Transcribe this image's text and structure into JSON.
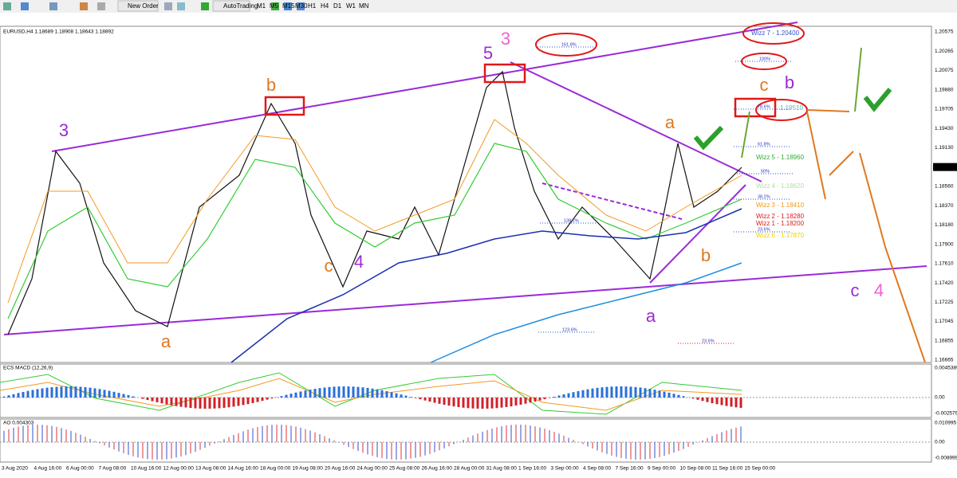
{
  "toolbar": {
    "new_order": "New Order",
    "autotrading": "AutoTrading",
    "timeframes": [
      "M1",
      "M5",
      "M15",
      "M30",
      "H1",
      "H4",
      "D1",
      "W1",
      "MN"
    ]
  },
  "chart": {
    "header": "EURUSD,H4  1.18689 1.18908 1.18643 1.18892",
    "price_axis": [
      "1.20575",
      "1.20265",
      "1.20075",
      "1.19880",
      "1.19705",
      "1.19430",
      "1.19130",
      "1.18892",
      "1.18560",
      "1.18370",
      "1.18180",
      "1.17900",
      "1.17610",
      "1.17420",
      "1.17225",
      "1.17045",
      "1.16855",
      "1.16665"
    ],
    "time_axis": [
      "3 Aug 2020",
      "4 Aug 16:00",
      "6 Aug 00:00",
      "7 Aug 08:00",
      "10 Aug 16:00",
      "12 Aug 00:00",
      "13 Aug 08:00",
      "14 Aug 16:00",
      "18 Aug 00:00",
      "19 Aug 08:00",
      "20 Aug 16:00",
      "24 Aug 00:00",
      "25 Aug 08:00",
      "26 Aug 16:00",
      "28 Aug 00:00",
      "31 Aug 08:00",
      "1 Sep 16:00",
      "3 Sep 00:00",
      "4 Sep 08:00",
      "7 Sep 16:00",
      "9 Sep 00:00",
      "10 Sep 08:00",
      "11 Sep 16:00",
      "15 Sep 00:00"
    ],
    "wave_labels": [
      "3",
      "b",
      "c",
      "4",
      "a",
      "5",
      "3",
      "a",
      "b",
      "a",
      "c",
      "b",
      "c",
      "4"
    ],
    "wizz_labels": [
      "Wizz 7 - 1.20400",
      "Wizz 5 - 1.18960",
      "Wizz 4 - 1.18620",
      "Wizz 3 - 1.18410",
      "Wizz 2 - 1.18280",
      "Wizz 1 - 1.18200",
      "Wizz 6 - 1.17870",
      "1.19510"
    ],
    "fib_labels": [
      "161.8%",
      "100%",
      "78.6%",
      "61.8%",
      "50%",
      "38.2%",
      "23.6%",
      "138.2%",
      "123.6%",
      "23.6%"
    ]
  },
  "macd": {
    "title": "ECS MACD (12,26,9)",
    "axis": [
      "0.0045389",
      "0.00",
      "-0.002579"
    ]
  },
  "ao": {
    "title": "AO 0.004303",
    "axis": [
      "0.010995",
      "0.00",
      "-0.008999"
    ]
  }
}
